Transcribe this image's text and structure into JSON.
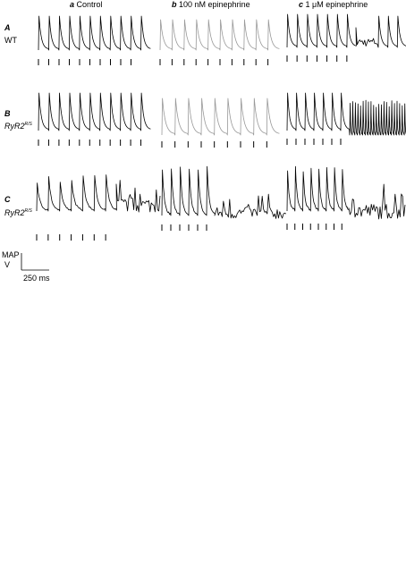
{
  "columns": [
    {
      "letter": "a",
      "label": "Control"
    },
    {
      "letter": "b",
      "label": "100 nM epinephrine"
    },
    {
      "letter": "c",
      "label": "1 μM epinephrine"
    }
  ],
  "rows": [
    {
      "letter": "A",
      "label": "WT"
    },
    {
      "letter": "B",
      "label": "RyR2",
      "superscript": "R/S"
    },
    {
      "letter": "C",
      "label": "RyR2",
      "superscript": "R/S"
    }
  ],
  "scale_bar": {
    "y_label_top": "MAP",
    "y_label_bottom": "V",
    "x_label": "250 ms"
  }
}
